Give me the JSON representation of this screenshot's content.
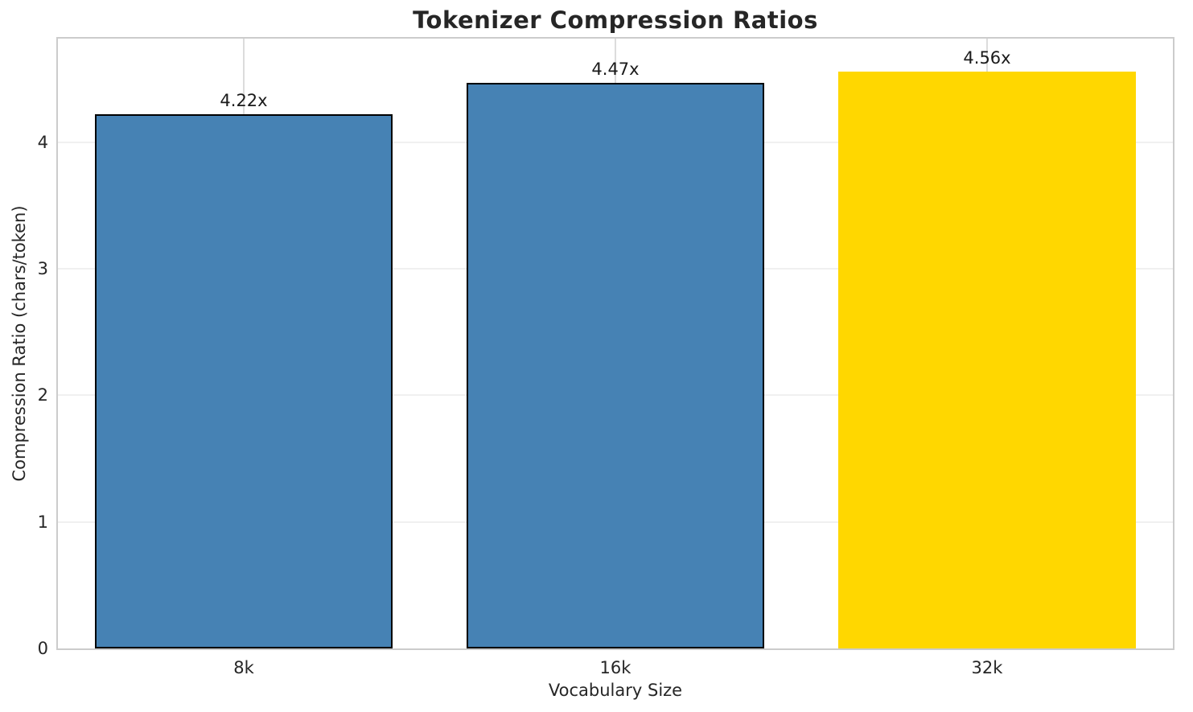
{
  "chart_data": {
    "type": "bar",
    "title": "Tokenizer Compression Ratios",
    "xlabel": "Vocabulary Size",
    "ylabel": "Compression Ratio (chars/token)",
    "categories": [
      "8k",
      "16k",
      "32k"
    ],
    "values": [
      4.22,
      4.47,
      4.56
    ],
    "value_labels": [
      "4.22x",
      "4.47x",
      "4.56x"
    ],
    "bar_colors": [
      "#4682B4",
      "#4682B4",
      "#FFD700"
    ],
    "bar_edge_colors": [
      "#000000",
      "#000000",
      "none"
    ],
    "ylim": [
      0,
      4.82
    ],
    "yticks": [
      0,
      1,
      2,
      3,
      4
    ],
    "bar_width_fraction": 0.8,
    "grid": "both",
    "grid_color_h": "#f0f0f0",
    "grid_color_v": "#dcdcdc",
    "spine_color": "#cccccc",
    "text_color": "#262626",
    "legend": "none"
  }
}
